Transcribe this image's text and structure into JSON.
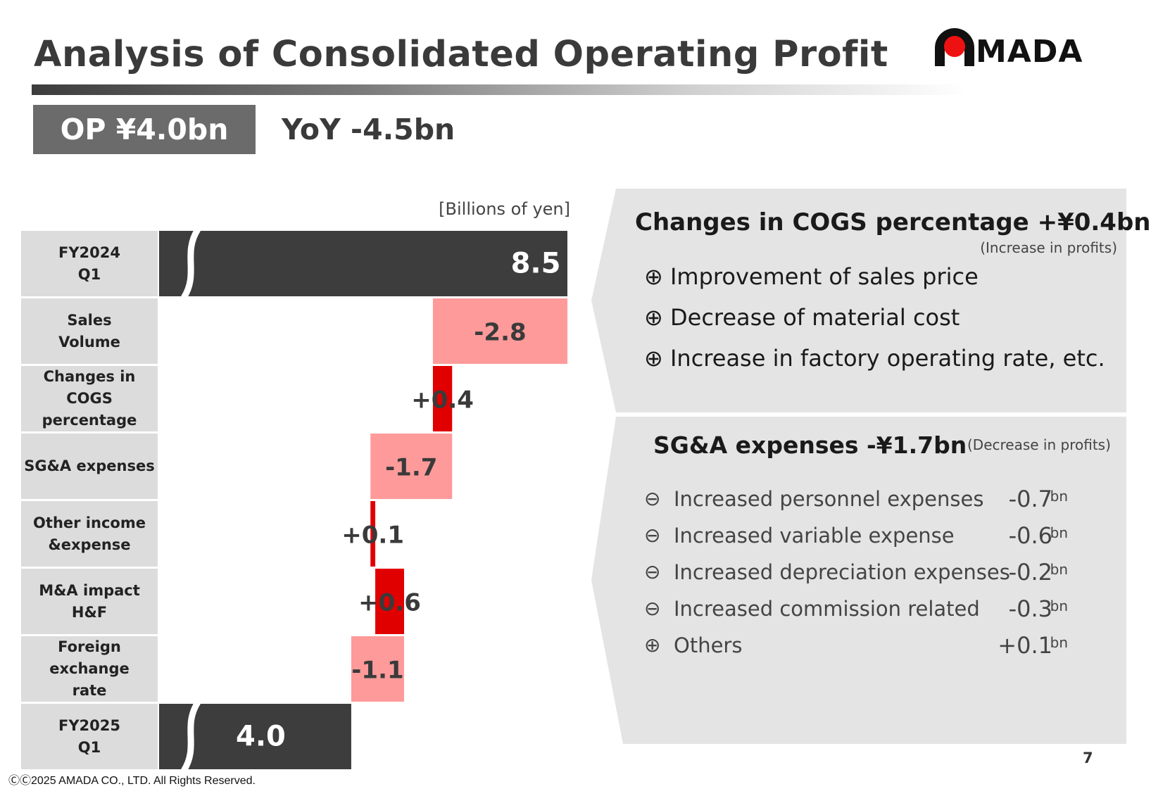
{
  "title": "Analysis of Consolidated Operating Profit",
  "logo": {
    "text": "MADA",
    "colors": {
      "dot": "#ee1111",
      "text": "#111111"
    }
  },
  "badge": {
    "label": "OP  ¥4.0bn"
  },
  "yoy": {
    "label": "YoY -4.5bn"
  },
  "chart_data": {
    "type": "bar",
    "subtype": "waterfall-horizontal",
    "unit_label": "[Billions of yen]",
    "categories": [
      "FY2024\nQ1",
      "Sales\nVolume",
      "Changes in\nCOGS percentage",
      "SG&A expenses",
      "Other income\n&expense",
      "M&A impact\nH&F",
      "Foreign exchange\nrate",
      "FY2025\nQ1"
    ],
    "values": [
      8.5,
      -2.8,
      0.4,
      -1.7,
      0.1,
      0.6,
      -1.1,
      4.0
    ],
    "labels": [
      "8.5",
      "-2.8",
      "+0.4",
      "-1.7",
      "+0.1",
      "+0.6",
      "-1.1",
      "4.0"
    ],
    "kinds": [
      "total",
      "delta",
      "delta",
      "delta",
      "delta",
      "delta",
      "delta",
      "total"
    ],
    "xlim": [
      0,
      8.5
    ],
    "axis_break": true,
    "colors": {
      "total": "#3d3d3d",
      "decrease": "#ff9a9a",
      "increase": "#e00000"
    }
  },
  "cogs_panel": {
    "title": "Changes in COGS percentage +¥0.4bn",
    "note": "(Increase in profits)",
    "items": [
      {
        "symbol": "⊕",
        "text": "Improvement of sales price"
      },
      {
        "symbol": "⊕",
        "text": "Decrease of material cost"
      },
      {
        "symbol": "⊕",
        "text": "Increase in factory operating rate, etc."
      }
    ]
  },
  "sga_panel": {
    "title": "SG&A expenses -¥1.7bn",
    "note": "(Decrease in profits)",
    "items": [
      {
        "symbol": "⊖",
        "text": "Increased personnel expenses",
        "value": "-0.7",
        "unit": "bn"
      },
      {
        "symbol": "⊖",
        "text": "Increased variable expense",
        "value": "-0.6",
        "unit": "bn"
      },
      {
        "symbol": "⊖",
        "text": "Increased depreciation expenses",
        "value": "-0.2",
        "unit": "bn"
      },
      {
        "symbol": "⊖",
        "text": "Increased commission related",
        "value": "-0.3",
        "unit": "bn"
      },
      {
        "symbol": "⊕",
        "text": "Others",
        "value": "+0.1",
        "unit": "bn"
      }
    ]
  },
  "footer": {
    "page_number": "7",
    "copyright": "ⒸⒸ2025 AMADA CO., LTD. All Rights Reserved."
  }
}
